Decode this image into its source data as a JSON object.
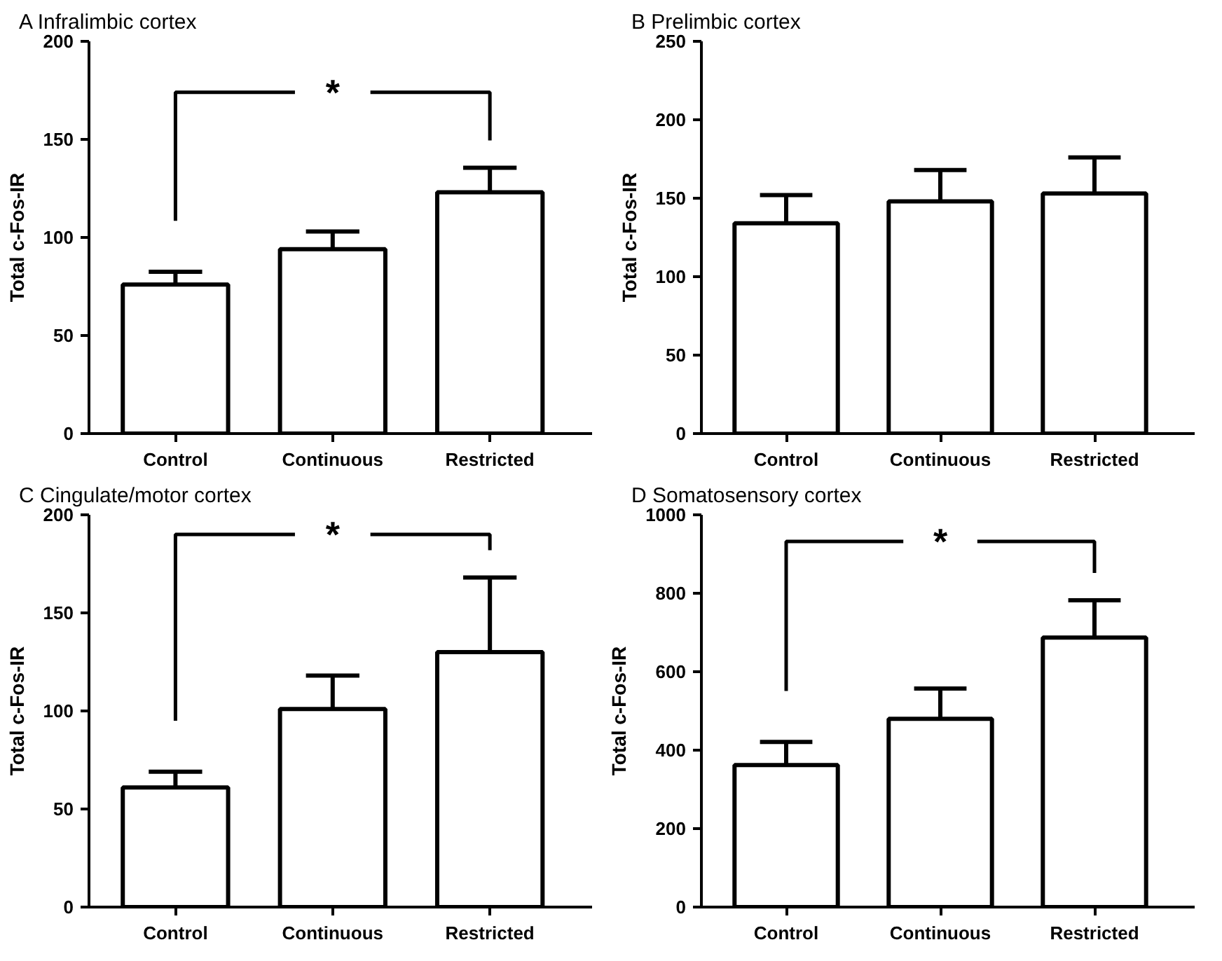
{
  "chart_data": [
    {
      "type": "bar",
      "title": "A Infralimbic cortex",
      "ylabel": "Total c-Fos-IR",
      "categories": [
        "Control",
        "Continuous",
        "Restricted"
      ],
      "values": [
        76,
        94,
        123
      ],
      "color": "#ffffff",
      "errors": [
        [
          76,
          82.5
        ],
        [
          94,
          103
        ],
        [
          123,
          135.5
        ]
      ],
      "ylim": [
        0,
        200
      ],
      "yticks": [
        0,
        50,
        100,
        150,
        200
      ],
      "annotations": [
        "*"
      ],
      "grid": false
    },
    {
      "type": "bar",
      "title": "B Prelimbic cortex",
      "ylabel": "Total c-Fos-IR",
      "categories": [
        "Control",
        "Continuous",
        "Restricted"
      ],
      "values": [
        134,
        148,
        153
      ],
      "color": "#ffffff",
      "errors": [
        [
          134,
          152
        ],
        [
          148,
          168
        ],
        [
          153,
          176
        ]
      ],
      "ylim": [
        0,
        250
      ],
      "yticks": [
        0,
        50,
        100,
        150,
        200,
        250
      ],
      "grid": false
    },
    {
      "type": "bar",
      "title": "C Cingulate/motor cortex",
      "ylabel": "Total c-Fos-IR",
      "categories": [
        "Control",
        "Continuous",
        "Restricted"
      ],
      "values": [
        61,
        101,
        130
      ],
      "color": "#ffffff",
      "errors": [
        [
          61,
          69
        ],
        [
          101,
          118
        ],
        [
          130,
          168
        ]
      ],
      "ylim": [
        0,
        200
      ],
      "yticks": [
        0,
        50,
        100,
        150,
        200
      ],
      "annotations": [
        "*"
      ],
      "grid": false
    },
    {
      "type": "bar",
      "title": "D Somatosensory cortex",
      "ylabel": "Total c-Fos-IR",
      "categories": [
        "Control",
        "Continuous",
        "Restricted"
      ],
      "values": [
        362,
        480,
        687
      ],
      "color": "#ffffff",
      "errors": [
        [
          362,
          421
        ],
        [
          480,
          557
        ],
        [
          687,
          782
        ]
      ],
      "ylim": [
        0,
        1000
      ],
      "yticks": [
        0,
        200,
        400,
        600,
        800,
        1000
      ],
      "annotations": [
        "*"
      ],
      "grid": false
    }
  ]
}
